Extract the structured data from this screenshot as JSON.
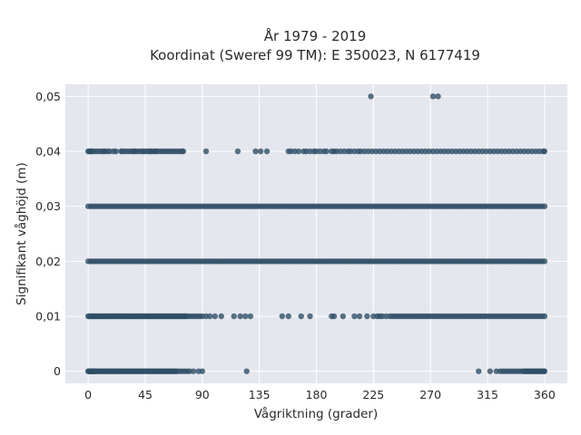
{
  "chart_data": {
    "type": "scatter",
    "title": "År 1979 - 2019",
    "subtitle": "Koordinat (Sweref 99 TM): E 350023, N 6177419",
    "xlabel": "Vågriktning (grader)",
    "ylabel": "Signifikant våghöjd (m)",
    "xlim": [
      -18,
      378
    ],
    "ylim": [
      -0.0022,
      0.0522
    ],
    "xticks": [
      0,
      45,
      90,
      135,
      180,
      225,
      270,
      315,
      360
    ],
    "yticks": [
      0,
      0.01,
      0.02,
      0.03,
      0.04,
      0.05
    ],
    "xtick_labels": [
      "0",
      "45",
      "90",
      "135",
      "180",
      "225",
      "270",
      "315",
      "360"
    ],
    "ytick_labels": [
      "0",
      "0,01",
      "0,02",
      "0,03",
      "0,04",
      "0,05"
    ],
    "grid": true,
    "marker_color": "#2f4f66",
    "background": "#e5e7ee",
    "series": [
      {
        "y": 0,
        "x": [
          0,
          0.5,
          1,
          1.5,
          2,
          2.5,
          3,
          3.5,
          4,
          4.5,
          5,
          5.5,
          6,
          7,
          8,
          9,
          10,
          11,
          12,
          13,
          14,
          15,
          16,
          17,
          18,
          19,
          20,
          21,
          22,
          23,
          24,
          25,
          26,
          27,
          28,
          29,
          30,
          31,
          32,
          33,
          34,
          35,
          36,
          37,
          38,
          39,
          40,
          41,
          42,
          43,
          44,
          45,
          46,
          47,
          48,
          49,
          50,
          51,
          52,
          53,
          54,
          55,
          56,
          57,
          58,
          59,
          60,
          61,
          62,
          63,
          64,
          65,
          66,
          67,
          68,
          69,
          70,
          72,
          74,
          76,
          78,
          80,
          83,
          87,
          90,
          125,
          308,
          317,
          322,
          325,
          327,
          329,
          331,
          333,
          335,
          337,
          339,
          341,
          343,
          344,
          345,
          346,
          347,
          348,
          349,
          350,
          351,
          352,
          353,
          354,
          355,
          356,
          357,
          358,
          359,
          359.5,
          360
        ]
      },
      {
        "y": 0.01,
        "x": [
          0,
          1,
          2,
          3,
          4,
          5,
          6,
          7,
          8,
          9,
          10,
          11,
          12,
          13,
          14,
          15,
          16,
          17,
          18,
          19,
          20,
          21,
          22,
          23,
          24,
          25,
          26,
          27,
          28,
          29,
          30,
          31,
          32,
          33,
          34,
          35,
          36,
          37,
          38,
          39,
          40,
          41,
          42,
          43,
          44,
          45,
          46,
          47,
          48,
          49,
          50,
          51,
          52,
          53,
          54,
          55,
          56,
          57,
          58,
          59,
          60,
          61,
          62,
          63,
          64,
          65,
          66,
          67,
          68,
          69,
          70,
          71,
          72,
          73,
          74,
          75,
          76,
          77,
          78,
          80,
          82,
          84,
          86,
          88,
          90,
          93,
          96,
          100,
          105,
          115,
          120,
          124,
          128,
          153,
          158,
          168,
          175,
          192,
          194,
          201,
          210,
          214,
          220,
          225,
          228,
          230,
          232,
          235,
          238,
          240,
          242,
          244,
          246,
          248,
          250,
          252,
          254,
          256,
          258,
          260,
          262,
          264,
          266,
          268,
          270,
          272,
          274,
          276,
          278,
          280,
          282,
          284,
          286,
          288,
          290,
          292,
          294,
          296,
          298,
          300,
          302,
          304,
          306,
          308,
          310,
          312,
          314,
          316,
          318,
          320,
          322,
          324,
          326,
          328,
          330,
          332,
          334,
          336,
          338,
          340,
          342,
          344,
          346,
          348,
          350,
          352,
          354,
          356,
          358,
          360
        ]
      },
      {
        "y": 0.02,
        "x": [
          0,
          2,
          4,
          6,
          8,
          10,
          12,
          14,
          16,
          18,
          20,
          22,
          24,
          26,
          28,
          30,
          32,
          34,
          36,
          38,
          40,
          42,
          44,
          46,
          48,
          50,
          52,
          54,
          56,
          58,
          60,
          62,
          64,
          66,
          68,
          70,
          72,
          74,
          76,
          78,
          80,
          82,
          84,
          86,
          88,
          90,
          92,
          94,
          96,
          98,
          100,
          102,
          104,
          106,
          108,
          110,
          112,
          114,
          116,
          118,
          120,
          122,
          124,
          126,
          128,
          130,
          132,
          134,
          136,
          138,
          140,
          142,
          144,
          146,
          148,
          150,
          152,
          154,
          156,
          158,
          160,
          162,
          164,
          166,
          168,
          170,
          172,
          174,
          176,
          178,
          180,
          182,
          184,
          186,
          188,
          190,
          192,
          194,
          196,
          198,
          200,
          202,
          204,
          206,
          208,
          210,
          212,
          214,
          216,
          218,
          220,
          222,
          224,
          226,
          228,
          230,
          232,
          234,
          236,
          238,
          240,
          242,
          244,
          246,
          248,
          250,
          252,
          254,
          256,
          258,
          260,
          262,
          264,
          266,
          268,
          270,
          272,
          274,
          276,
          278,
          280,
          282,
          284,
          286,
          288,
          290,
          292,
          294,
          296,
          298,
          300,
          302,
          304,
          306,
          308,
          310,
          312,
          314,
          316,
          318,
          320,
          322,
          324,
          326,
          328,
          330,
          332,
          334,
          336,
          338,
          340,
          342,
          344,
          346,
          348,
          350,
          352,
          354,
          356,
          358,
          360
        ]
      },
      {
        "y": 0.03,
        "x": [
          0,
          2,
          4,
          6,
          8,
          10,
          12,
          14,
          16,
          18,
          20,
          22,
          24,
          26,
          28,
          30,
          32,
          34,
          36,
          38,
          40,
          42,
          44,
          46,
          48,
          50,
          52,
          54,
          56,
          58,
          60,
          62,
          64,
          66,
          68,
          70,
          72,
          74,
          76,
          78,
          80,
          82,
          84,
          86,
          88,
          90,
          92,
          94,
          96,
          98,
          100,
          102,
          104,
          106,
          108,
          110,
          112,
          114,
          116,
          118,
          120,
          122,
          124,
          126,
          128,
          130,
          132,
          134,
          136,
          138,
          140,
          142,
          144,
          146,
          148,
          150,
          152,
          154,
          156,
          158,
          160,
          162,
          164,
          166,
          168,
          170,
          172,
          174,
          176,
          178,
          180,
          182,
          184,
          186,
          188,
          190,
          192,
          194,
          196,
          198,
          200,
          202,
          204,
          206,
          208,
          210,
          212,
          214,
          216,
          218,
          220,
          222,
          224,
          226,
          228,
          230,
          232,
          234,
          236,
          238,
          240,
          242,
          244,
          246,
          248,
          250,
          252,
          254,
          256,
          258,
          260,
          262,
          264,
          266,
          268,
          270,
          272,
          274,
          276,
          278,
          280,
          282,
          284,
          286,
          288,
          290,
          292,
          294,
          296,
          298,
          300,
          302,
          304,
          306,
          308,
          310,
          312,
          314,
          316,
          318,
          320,
          322,
          324,
          326,
          328,
          330,
          332,
          334,
          336,
          338,
          340,
          342,
          344,
          346,
          348,
          350,
          352,
          354,
          356,
          358,
          360
        ]
      },
      {
        "y": 0.04,
        "x": [
          0,
          1,
          2,
          3,
          4,
          6,
          8,
          10,
          12,
          13,
          15,
          17,
          20,
          22,
          26,
          27,
          29,
          31,
          33,
          35,
          36,
          37,
          39,
          41,
          43,
          44,
          46,
          48,
          49,
          50,
          52,
          53,
          54,
          56,
          58,
          60,
          62,
          64,
          66,
          68,
          70,
          72,
          74,
          75,
          93,
          118,
          132,
          136,
          141,
          158,
          160,
          163,
          166,
          170,
          172,
          175,
          178,
          180,
          183,
          186,
          188,
          192,
          194,
          196,
          199,
          202,
          205,
          207,
          210,
          213,
          215,
          218,
          221,
          224,
          227,
          230,
          233,
          236,
          239,
          242,
          245,
          248,
          251,
          254,
          257,
          260,
          263,
          266,
          269,
          272,
          275,
          278,
          281,
          284,
          287,
          290,
          293,
          296,
          299,
          302,
          305,
          308,
          311,
          314,
          317,
          320,
          323,
          326,
          329,
          332,
          335,
          338,
          341,
          344,
          347,
          350,
          353,
          356,
          359,
          360
        ]
      },
      {
        "y": 0.05,
        "x": [
          223,
          272,
          276
        ]
      }
    ]
  }
}
